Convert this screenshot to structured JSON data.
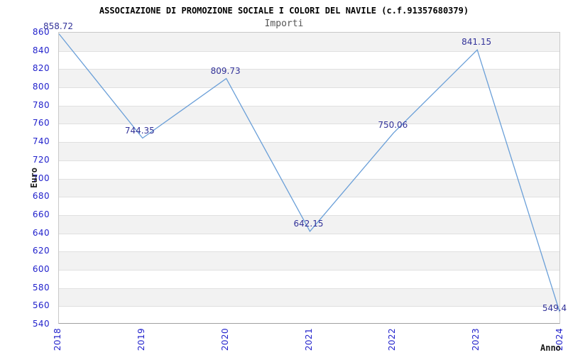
{
  "header": {
    "title": "ASSOCIAZIONE DI PROMOZIONE SOCIALE I COLORI DEL NAVILE (c.f.91357680379)",
    "subtitle": "Importi"
  },
  "chart_data": {
    "type": "line",
    "title": "ASSOCIAZIONE DI PROMOZIONE SOCIALE I COLORI DEL NAVILE (c.f.91357680379)",
    "subtitle": "Importi",
    "xlabel": "Anno",
    "ylabel": "Euro",
    "categories": [
      "2018",
      "2019",
      "2020",
      "2021",
      "2022",
      "2023",
      "2024"
    ],
    "series": [
      {
        "name": "Importi",
        "values": [
          858.72,
          744.35,
          809.73,
          642.15,
          750.06,
          841.15,
          549.4
        ]
      }
    ],
    "point_labels": [
      "858.72",
      "744.35",
      "809.73",
      "642.15",
      "750.06",
      "841.15",
      "549.4"
    ],
    "ylim": [
      540,
      860
    ],
    "ytick_step": 20,
    "ytick_labels": [
      "860",
      "840",
      "820",
      "800",
      "780",
      "760",
      "740",
      "720",
      "700",
      "680",
      "660",
      "640",
      "620",
      "600",
      "580",
      "560",
      "540"
    ],
    "grid": "horizontal-bands",
    "legend_position": "none",
    "colors": {
      "line": "#6a9fd8",
      "point_label": "#333399",
      "tick_label": "#2222cc",
      "band": "#f2f2f2",
      "gridline": "#e0e0e0",
      "title": "#000000",
      "subtitle": "#555555",
      "axis_title": "#1a1a1a"
    }
  }
}
